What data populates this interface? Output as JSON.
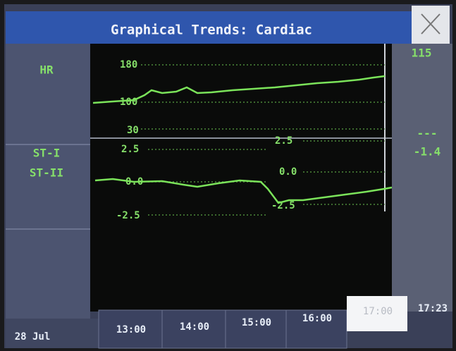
{
  "header": {
    "title": "Graphical Trends: Cardiac"
  },
  "rows": [
    {
      "labels": [
        "HR"
      ],
      "scale": [
        "180",
        "100",
        "30"
      ],
      "value": "115"
    },
    {
      "labels": [
        "ST-I",
        "ST-II"
      ],
      "scale": [
        "2.5",
        "0.0",
        "-2.5"
      ],
      "scale2": [
        "2.5",
        "0.0",
        "-2.5"
      ],
      "values": [
        "---",
        "-1.4"
      ]
    }
  ],
  "footer": {
    "date": "28 Jul",
    "times": [
      "13:00",
      "14:00",
      "15:00",
      "16:00",
      "17:00"
    ],
    "current": "17:23"
  }
}
